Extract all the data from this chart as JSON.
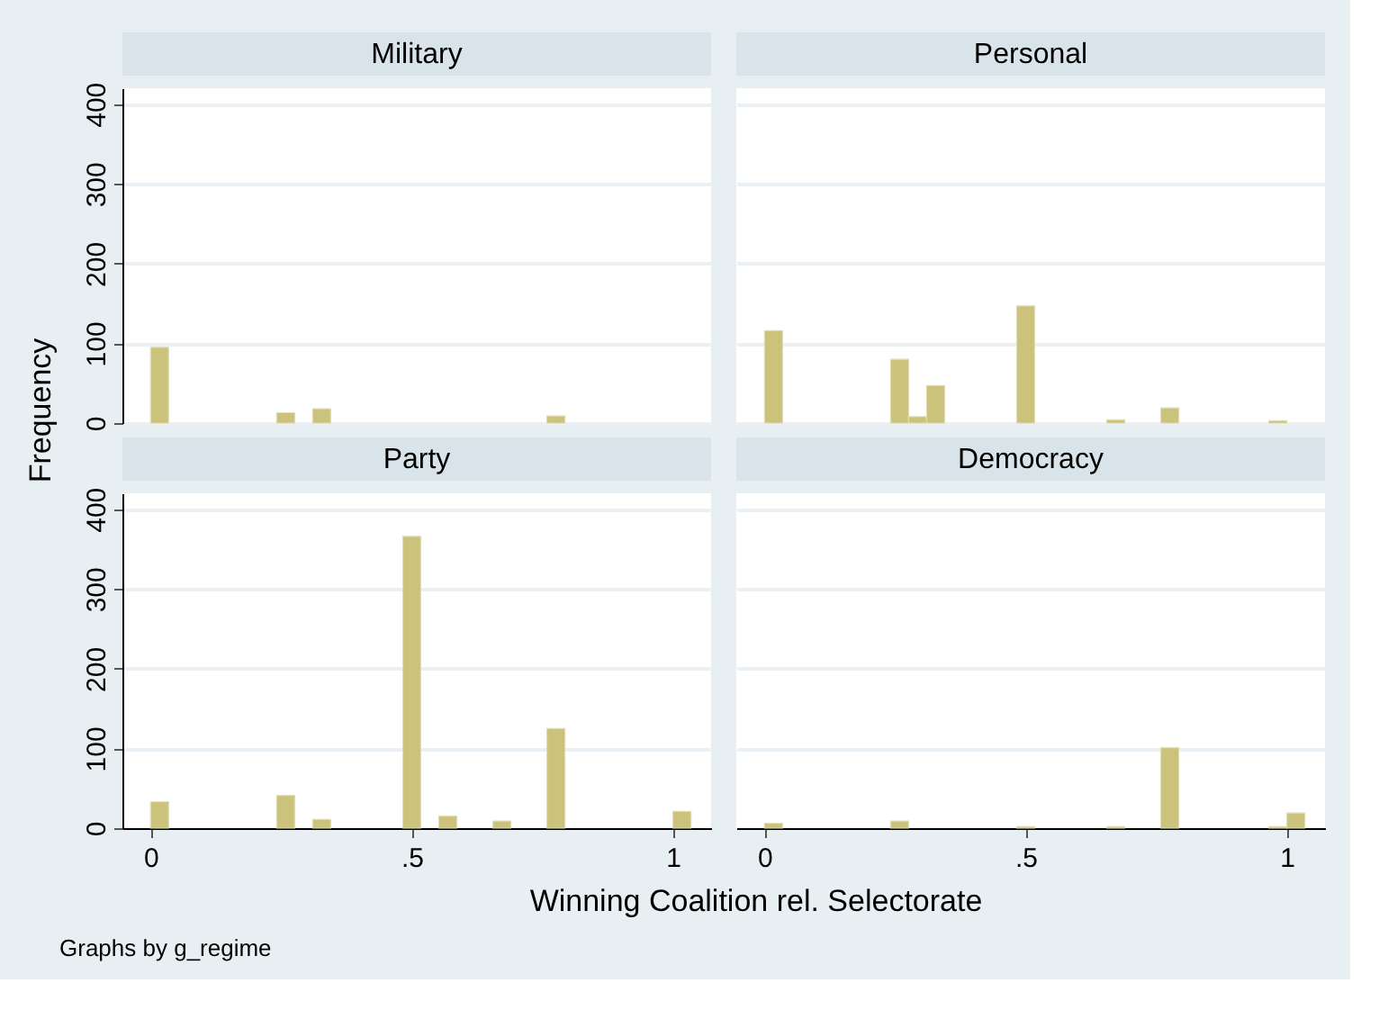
{
  "chart_data": [
    {
      "type": "histogram",
      "title": "Military",
      "ylabel": "Frequency",
      "color": "#cbc27c",
      "bins": [
        0,
        0.0345,
        0.069,
        0.1034,
        0.1379,
        0.1724,
        0.2069,
        0.2414,
        0.2759,
        0.3103,
        0.3448,
        0.3793,
        0.4138,
        0.4483,
        0.4828,
        0.5172,
        0.5517,
        0.5862,
        0.6207,
        0.6552,
        0.6897,
        0.7241,
        0.7586,
        0.7931,
        0.8276,
        0.8621,
        0.8966,
        0.931,
        0.9655,
        1.0,
        1.0345
      ],
      "values": [
        95,
        0,
        0,
        0,
        0,
        0,
        0,
        13,
        0,
        18,
        0,
        0,
        0,
        0,
        0,
        0,
        0,
        0,
        0,
        0,
        0,
        0,
        9,
        0,
        0,
        0,
        0,
        0,
        0,
        0
      ],
      "xlim": [
        -0.054,
        1.073
      ],
      "ylim": [
        0,
        420
      ],
      "yticks": [
        0,
        100,
        200,
        300,
        400
      ],
      "grid": "y",
      "tick_labels": "y"
    },
    {
      "type": "histogram",
      "title": "Personal",
      "color": "#cbc27c",
      "bins": [
        0,
        0.0345,
        0.069,
        0.1034,
        0.1379,
        0.1724,
        0.2069,
        0.2414,
        0.2759,
        0.3103,
        0.3448,
        0.3793,
        0.4138,
        0.4483,
        0.4828,
        0.5172,
        0.5517,
        0.5862,
        0.6207,
        0.6552,
        0.6897,
        0.7241,
        0.7586,
        0.7931,
        0.8276,
        0.8621,
        0.8966,
        0.931,
        0.9655,
        1.0,
        1.0345
      ],
      "values": [
        116,
        0,
        0,
        0,
        0,
        0,
        0,
        80,
        8,
        47,
        0,
        0,
        0,
        0,
        147,
        0,
        0,
        0,
        0,
        4,
        0,
        0,
        19,
        0,
        0,
        0,
        0,
        0,
        3,
        0
      ],
      "xlim": [
        -0.054,
        1.073
      ],
      "ylim": [
        0,
        420
      ],
      "yticks": [
        0,
        100,
        200,
        300,
        400
      ],
      "grid": "y",
      "tick_labels": false
    },
    {
      "type": "histogram",
      "title": "Party",
      "xlabel": "Winning Coalition rel. Selectorate",
      "annotations": [
        "Graphs by g_regime"
      ],
      "color": "#cbc27c",
      "bins": [
        0,
        0.0345,
        0.069,
        0.1034,
        0.1379,
        0.1724,
        0.2069,
        0.2414,
        0.2759,
        0.3103,
        0.3448,
        0.3793,
        0.4138,
        0.4483,
        0.4828,
        0.5172,
        0.5517,
        0.5862,
        0.6207,
        0.6552,
        0.6897,
        0.7241,
        0.7586,
        0.7931,
        0.8276,
        0.8621,
        0.8966,
        0.931,
        0.9655,
        1.0,
        1.0345
      ],
      "values": [
        33,
        0,
        0,
        0,
        0,
        0,
        0,
        41,
        0,
        11,
        0,
        0,
        0,
        0,
        366,
        0,
        15,
        0,
        0,
        9,
        0,
        0,
        125,
        0,
        0,
        0,
        0,
        0,
        0,
        21
      ],
      "xlim": [
        -0.054,
        1.073
      ],
      "xticks": [
        0,
        {
          "value": 0.5,
          "label": ".5"
        },
        1
      ],
      "ylim": [
        0,
        420
      ],
      "yticks": [
        0,
        100,
        200,
        300,
        400
      ],
      "grid": "y"
    },
    {
      "type": "histogram",
      "title": "Democracy",
      "color": "#cbc27c",
      "bins": [
        0,
        0.0345,
        0.069,
        0.1034,
        0.1379,
        0.1724,
        0.2069,
        0.2414,
        0.2759,
        0.3103,
        0.3448,
        0.3793,
        0.4138,
        0.4483,
        0.4828,
        0.5172,
        0.5517,
        0.5862,
        0.6207,
        0.6552,
        0.6897,
        0.7241,
        0.7586,
        0.7931,
        0.8276,
        0.8621,
        0.8966,
        0.931,
        0.9655,
        1.0,
        1.0345
      ],
      "values": [
        6,
        0,
        0,
        0,
        0,
        0,
        0,
        9,
        0,
        0,
        0,
        0,
        0,
        0,
        2,
        0,
        0,
        0,
        0,
        2,
        0,
        0,
        101,
        0,
        0,
        0,
        0,
        0,
        2,
        19
      ],
      "xlim": [
        -0.054,
        1.073
      ],
      "xticks": [
        0,
        {
          "value": 0.5,
          "label": ".5"
        },
        1
      ],
      "ylim": [
        0,
        420
      ],
      "yticks": [
        0,
        100,
        200,
        300,
        400
      ],
      "grid": "y",
      "tick_labels": "x"
    }
  ]
}
